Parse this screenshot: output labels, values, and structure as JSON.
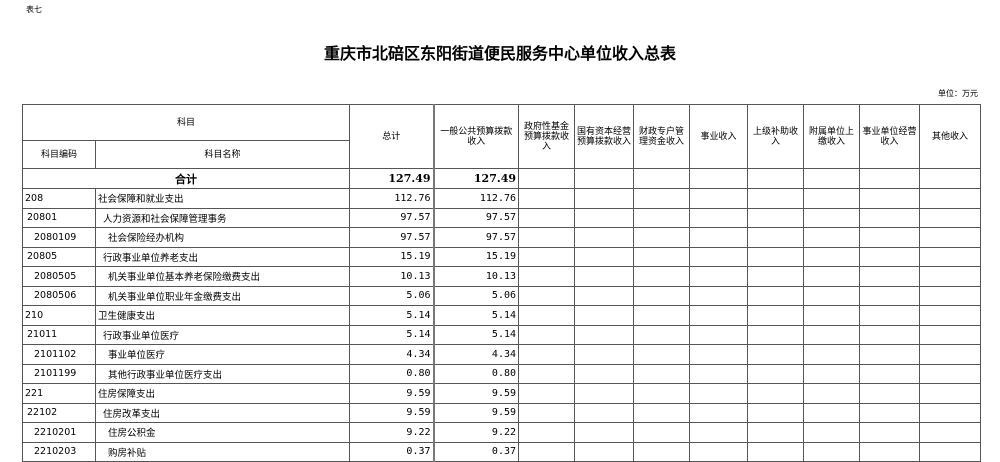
{
  "header": {
    "tag": "表七",
    "title": "重庆市北碚区东阳街道便民服务中心单位收入总表",
    "unit": "单位：万元"
  },
  "columns": {
    "subject": "科目",
    "code": "科目编码",
    "name": "科目名称",
    "total": "总计",
    "general": "一般公共预算拨款收入",
    "fund": "政府性基金预算拨款收入",
    "state_capital": "国有资本经营预算拨款收入",
    "special": "财政专户管理资金收入",
    "business": "事业收入",
    "superior": "上级补助收入",
    "affiliated": "附属单位上缴收入",
    "operation": "事业单位经营收入",
    "other": "其他收入"
  },
  "total_row": {
    "label": "合计",
    "total": "127.49",
    "general": "127.49"
  },
  "rows": [
    {
      "code": "208",
      "name": "社会保障和就业支出",
      "level": 0,
      "total": "112.76",
      "general": "112.76"
    },
    {
      "code": "20801",
      "name": "人力资源和社会保障管理事务",
      "level": 1,
      "total": "97.57",
      "general": "97.57"
    },
    {
      "code": "2080109",
      "name": "社会保险经办机构",
      "level": 2,
      "total": "97.57",
      "general": "97.57"
    },
    {
      "code": "20805",
      "name": "行政事业单位养老支出",
      "level": 1,
      "total": "15.19",
      "general": "15.19"
    },
    {
      "code": "2080505",
      "name": "机关事业单位基本养老保险缴费支出",
      "level": 2,
      "total": "10.13",
      "general": "10.13"
    },
    {
      "code": "2080506",
      "name": "机关事业单位职业年金缴费支出",
      "level": 2,
      "total": "5.06",
      "general": "5.06"
    },
    {
      "code": "210",
      "name": "卫生健康支出",
      "level": 0,
      "total": "5.14",
      "general": "5.14"
    },
    {
      "code": "21011",
      "name": "行政事业单位医疗",
      "level": 1,
      "total": "5.14",
      "general": "5.14"
    },
    {
      "code": "2101102",
      "name": "事业单位医疗",
      "level": 2,
      "total": "4.34",
      "general": "4.34"
    },
    {
      "code": "2101199",
      "name": "其他行政事业单位医疗支出",
      "level": 2,
      "total": "0.80",
      "general": "0.80"
    },
    {
      "code": "221",
      "name": "住房保障支出",
      "level": 0,
      "total": "9.59",
      "general": "9.59"
    },
    {
      "code": "22102",
      "name": "住房改革支出",
      "level": 1,
      "total": "9.59",
      "general": "9.59"
    },
    {
      "code": "2210201",
      "name": "住房公积金",
      "level": 2,
      "total": "9.22",
      "general": "9.22"
    },
    {
      "code": "2210203",
      "name": "购房补贴",
      "level": 2,
      "total": "0.37",
      "general": "0.37"
    }
  ]
}
